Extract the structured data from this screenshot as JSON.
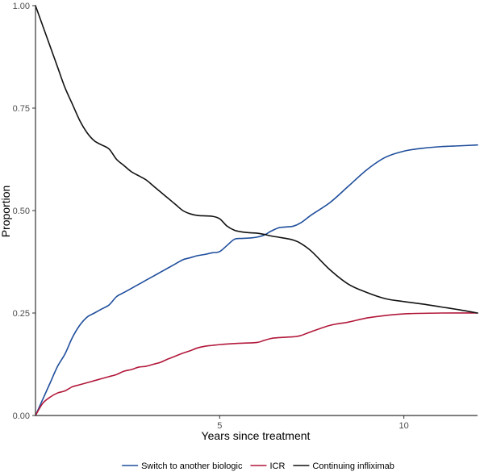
{
  "chart_data": {
    "type": "line",
    "xlabel": "Years since treatment",
    "ylabel": "Proportion",
    "xlim": [
      0,
      12
    ],
    "ylim": [
      0,
      1
    ],
    "x_ticks": [
      5,
      10
    ],
    "x_tick_labels": [
      "5",
      "10"
    ],
    "y_ticks": [
      0,
      0.25,
      0.5,
      0.75,
      1
    ],
    "y_tick_labels": [
      "0.00",
      "0.25",
      "0.50",
      "0.75",
      "1.00"
    ],
    "grid": false,
    "legend_position": "bottom",
    "series": [
      {
        "name": "Switch to another biologic",
        "color": "#1F4E9C",
        "x": [
          0,
          0.2,
          0.4,
          0.6,
          0.8,
          1.0,
          1.2,
          1.4,
          1.6,
          1.8,
          2.0,
          2.2,
          2.4,
          2.6,
          2.8,
          3.0,
          3.2,
          3.4,
          3.6,
          3.8,
          4.0,
          4.2,
          4.4,
          4.6,
          4.8,
          5.0,
          5.2,
          5.4,
          5.6,
          5.8,
          6.0,
          6.2,
          6.4,
          6.6,
          6.8,
          7.0,
          7.2,
          7.5,
          8.0,
          8.5,
          9.0,
          9.5,
          10.0,
          10.5,
          11.0,
          11.5,
          12.0
        ],
        "values": [
          0,
          0.04,
          0.08,
          0.12,
          0.15,
          0.19,
          0.22,
          0.24,
          0.25,
          0.26,
          0.27,
          0.29,
          0.3,
          0.31,
          0.32,
          0.33,
          0.34,
          0.35,
          0.36,
          0.37,
          0.38,
          0.385,
          0.39,
          0.393,
          0.397,
          0.4,
          0.415,
          0.43,
          0.432,
          0.433,
          0.435,
          0.44,
          0.45,
          0.458,
          0.46,
          0.462,
          0.47,
          0.49,
          0.52,
          0.56,
          0.6,
          0.63,
          0.645,
          0.652,
          0.656,
          0.658,
          0.66
        ]
      },
      {
        "name": "ICR",
        "color": "#B2183A",
        "x": [
          0,
          0.2,
          0.4,
          0.6,
          0.8,
          1.0,
          1.2,
          1.4,
          1.6,
          1.8,
          2.0,
          2.2,
          2.4,
          2.6,
          2.8,
          3.0,
          3.2,
          3.4,
          3.6,
          3.8,
          4.0,
          4.2,
          4.4,
          4.6,
          4.8,
          5.0,
          5.5,
          6.0,
          6.2,
          6.4,
          6.6,
          7.0,
          7.2,
          7.5,
          8.0,
          8.5,
          9.0,
          9.5,
          10.0,
          11.0,
          12.0
        ],
        "values": [
          0,
          0.03,
          0.045,
          0.055,
          0.06,
          0.07,
          0.075,
          0.08,
          0.085,
          0.09,
          0.095,
          0.1,
          0.108,
          0.112,
          0.118,
          0.12,
          0.125,
          0.13,
          0.138,
          0.145,
          0.152,
          0.158,
          0.165,
          0.169,
          0.171,
          0.173,
          0.176,
          0.178,
          0.183,
          0.188,
          0.19,
          0.192,
          0.195,
          0.205,
          0.22,
          0.228,
          0.238,
          0.244,
          0.248,
          0.25,
          0.25
        ]
      },
      {
        "name": "Continuing infliximab",
        "color": "#111111",
        "x": [
          0,
          0.2,
          0.4,
          0.6,
          0.8,
          1.0,
          1.2,
          1.4,
          1.6,
          1.8,
          2.0,
          2.2,
          2.4,
          2.6,
          2.8,
          3.0,
          3.2,
          3.4,
          3.6,
          3.8,
          4.0,
          4.2,
          4.4,
          4.6,
          4.8,
          5.0,
          5.2,
          5.4,
          5.6,
          5.8,
          6.0,
          6.2,
          6.4,
          6.6,
          6.8,
          7.0,
          7.2,
          7.5,
          8.0,
          8.5,
          9.0,
          9.5,
          10.0,
          10.5,
          11.0,
          11.5,
          12.0
        ],
        "values": [
          1.0,
          0.95,
          0.9,
          0.85,
          0.8,
          0.76,
          0.72,
          0.69,
          0.67,
          0.66,
          0.65,
          0.625,
          0.61,
          0.595,
          0.585,
          0.575,
          0.56,
          0.545,
          0.53,
          0.515,
          0.5,
          0.492,
          0.488,
          0.487,
          0.486,
          0.48,
          0.462,
          0.452,
          0.448,
          0.446,
          0.445,
          0.442,
          0.438,
          0.435,
          0.432,
          0.428,
          0.42,
          0.4,
          0.355,
          0.32,
          0.3,
          0.285,
          0.278,
          0.272,
          0.265,
          0.258,
          0.25
        ]
      }
    ]
  }
}
